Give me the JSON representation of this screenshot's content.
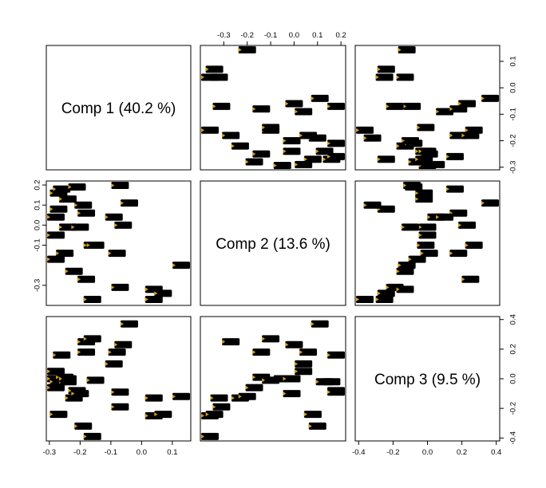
{
  "chart_data": {
    "type": "scatter",
    "matrix_type": "pairs",
    "variables": [
      "Comp 1 (40.2 %)",
      "Comp 2 (13.6 %)",
      "Comp 3 (9.5 %)"
    ],
    "axis_ranges": {
      "comp1": [
        -0.31,
        0.16
      ],
      "comp2": [
        -0.4,
        0.22
      ],
      "comp3": [
        -0.42,
        0.42
      ]
    },
    "ticks": {
      "comp1": {
        "values": [
          -0.3,
          -0.2,
          -0.1,
          0.0,
          0.1
        ],
        "labels": [
          "-0.3",
          "-0.2",
          "-0.1",
          "0.0",
          "0.1"
        ],
        "top_values": [
          -0.3,
          -0.2,
          -0.1,
          0.0,
          0.1,
          0.2
        ],
        "top_labels": [
          "-0.3",
          "-0.2",
          "-0.1",
          "0.0",
          "0.1",
          "0.2"
        ]
      },
      "comp2": {
        "values": [
          -0.3,
          -0.1,
          0.0,
          0.1,
          0.2
        ],
        "labels": [
          "-0.3",
          "-0.1",
          "0.0",
          "0.1",
          "0.2"
        ]
      },
      "comp3": {
        "values": [
          -0.4,
          -0.2,
          0.0,
          0.2,
          0.4
        ],
        "labels": [
          "-0.4",
          "-0.2",
          "0.0",
          "0.2",
          "0.4"
        ]
      }
    },
    "points": [
      {
        "c1": -0.29,
        "c2": 0.04,
        "c3": 0.05
      },
      {
        "c1": -0.3,
        "c2": -0.05,
        "c3": 0.0
      },
      {
        "c1": -0.28,
        "c2": -0.17,
        "c3": -0.06
      },
      {
        "c1": -0.27,
        "c2": 0.16,
        "c3": -0.02
      },
      {
        "c1": -0.27,
        "c2": 0.08,
        "c3": -0.24
      },
      {
        "c1": -0.26,
        "c2": 0.18,
        "c3": 0.16
      },
      {
        "c1": -0.25,
        "c2": -0.14,
        "c3": 0.01
      },
      {
        "c1": -0.24,
        "c2": 0.13,
        "c3": -0.02
      },
      {
        "c1": -0.24,
        "c2": -0.01,
        "c3": 0.0
      },
      {
        "c1": -0.22,
        "c2": -0.23,
        "c3": -0.13
      },
      {
        "c1": -0.21,
        "c2": 0.19,
        "c3": -0.08
      },
      {
        "c1": -0.2,
        "c2": -0.01,
        "c3": -0.1
      },
      {
        "c1": -0.19,
        "c2": 0.1,
        "c3": -0.32
      },
      {
        "c1": -0.18,
        "c2": 0.06,
        "c3": 0.18
      },
      {
        "c1": -0.18,
        "c2": -0.27,
        "c3": 0.25
      },
      {
        "c1": -0.16,
        "c2": -0.1,
        "c3": 0.27
      },
      {
        "c1": -0.16,
        "c2": -0.37,
        "c3": -0.39
      },
      {
        "c1": -0.15,
        "c2": -0.1,
        "c3": -0.01
      },
      {
        "c1": -0.09,
        "c2": 0.04,
        "c3": 0.1
      },
      {
        "c1": -0.08,
        "c2": -0.14,
        "c3": 0.18
      },
      {
        "c1": -0.07,
        "c2": 0.2,
        "c3": -0.09
      },
      {
        "c1": -0.07,
        "c2": -0.31,
        "c3": -0.19
      },
      {
        "c1": -0.06,
        "c2": 0.0,
        "c3": 0.23
      },
      {
        "c1": -0.04,
        "c2": 0.11,
        "c3": 0.37
      },
      {
        "c1": 0.04,
        "c2": -0.32,
        "c3": -0.13
      },
      {
        "c1": 0.04,
        "c2": -0.37,
        "c3": -0.25
      },
      {
        "c1": 0.07,
        "c2": -0.34,
        "c3": -0.24
      },
      {
        "c1": 0.15,
        "c2": -0.2,
        "c3": -0.12
      }
    ]
  }
}
